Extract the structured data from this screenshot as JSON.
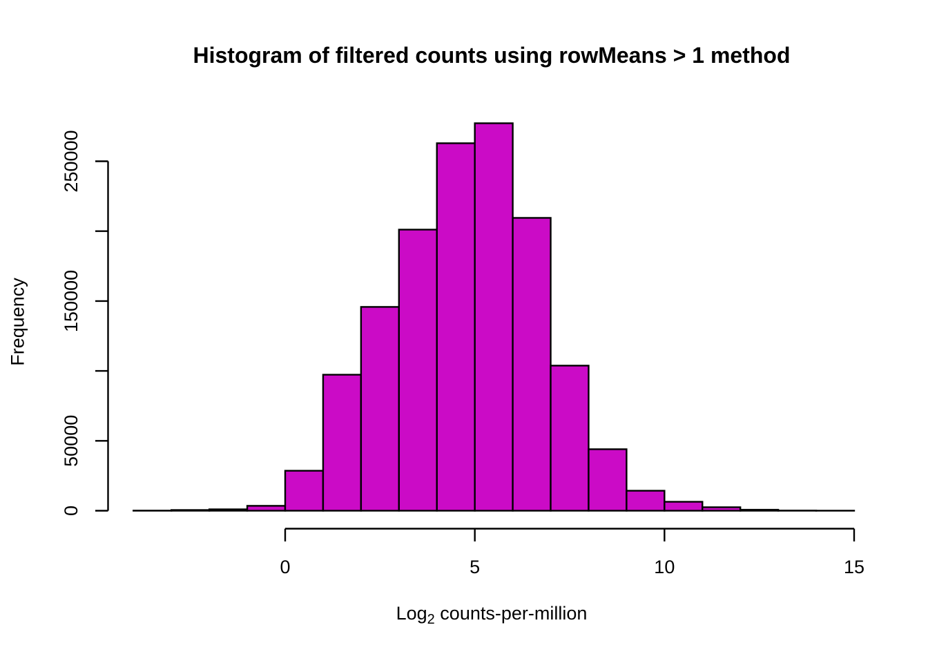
{
  "chart_data": {
    "type": "bar",
    "subtype": "histogram",
    "title": "Histogram of filtered counts using rowMeans > 1 method",
    "xlabel": "Log2 counts-per-million",
    "xlabel_parts": {
      "prefix": "Log",
      "subscript": "2",
      "suffix": " counts-per-million"
    },
    "ylabel": "Frequency",
    "xlim": [
      -4,
      15
    ],
    "ylim": [
      0,
      250000
    ],
    "bin_width": 1,
    "breaks": [
      -4,
      -3,
      -2,
      -1,
      0,
      1,
      2,
      3,
      4,
      5,
      6,
      7,
      8,
      9,
      10,
      11,
      12,
      13,
      14,
      15
    ],
    "counts": [
      100,
      500,
      1000,
      3500,
      28600,
      97300,
      145800,
      201100,
      262900,
      277200,
      209500,
      103800,
      44000,
      14300,
      6400,
      2500,
      700,
      150,
      50
    ],
    "x_ticks": [
      0,
      5,
      10,
      15
    ],
    "x_tick_labels": [
      "0",
      "5",
      "10",
      "15"
    ],
    "y_ticks": [
      0,
      50000,
      100000,
      150000,
      200000,
      250000
    ],
    "y_tick_labels": [
      "0",
      "50000",
      "",
      "150000",
      "",
      "250000"
    ],
    "grid": false,
    "legend": null,
    "bar_fill": "#CB0BC6",
    "bar_stroke": "#000000",
    "axis_color": "#000000",
    "text_color": "#000000",
    "background": "#FFFFFF"
  }
}
